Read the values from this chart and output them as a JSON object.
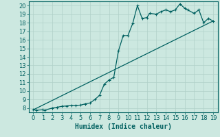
{
  "xlabel": "Humidex (Indice chaleur)",
  "background_color": "#cce8e0",
  "line_color": "#006060",
  "grid_color": "#b0d0c8",
  "xlim": [
    -0.5,
    19.5
  ],
  "ylim": [
    7.5,
    20.5
  ],
  "xticks": [
    0,
    1,
    2,
    3,
    4,
    5,
    6,
    7,
    8,
    9,
    10,
    11,
    12,
    13,
    14,
    15,
    16,
    17,
    18,
    19
  ],
  "yticks": [
    8,
    9,
    10,
    11,
    12,
    13,
    14,
    15,
    16,
    17,
    18,
    19,
    20
  ],
  "curve1_x": [
    0,
    0.3,
    1,
    1.2,
    2,
    2.5,
    3,
    3.5,
    4,
    4.5,
    5,
    5.5,
    6,
    6.5,
    7,
    7.5,
    8,
    8.5,
    9,
    9.5,
    10,
    10.5,
    11,
    11.5,
    12,
    12.3,
    13,
    13.5,
    14,
    14.5,
    15,
    15.5,
    16,
    16.3,
    17,
    17.5,
    18,
    18.5,
    19
  ],
  "curve1_y": [
    7.8,
    7.75,
    7.8,
    7.75,
    8.0,
    8.1,
    8.2,
    8.25,
    8.3,
    8.3,
    8.35,
    8.5,
    8.6,
    9.0,
    9.5,
    10.8,
    11.3,
    11.6,
    14.7,
    16.5,
    16.5,
    17.9,
    20.0,
    18.5,
    18.6,
    19.1,
    19.0,
    19.3,
    19.5,
    19.3,
    19.5,
    20.2,
    19.7,
    19.5,
    19.1,
    19.5,
    18.0,
    18.5,
    18.2
  ],
  "curve2_x": [
    0,
    19
  ],
  "curve2_y": [
    7.8,
    18.2
  ],
  "xlabel_fontsize": 7,
  "tick_fontsize": 6
}
